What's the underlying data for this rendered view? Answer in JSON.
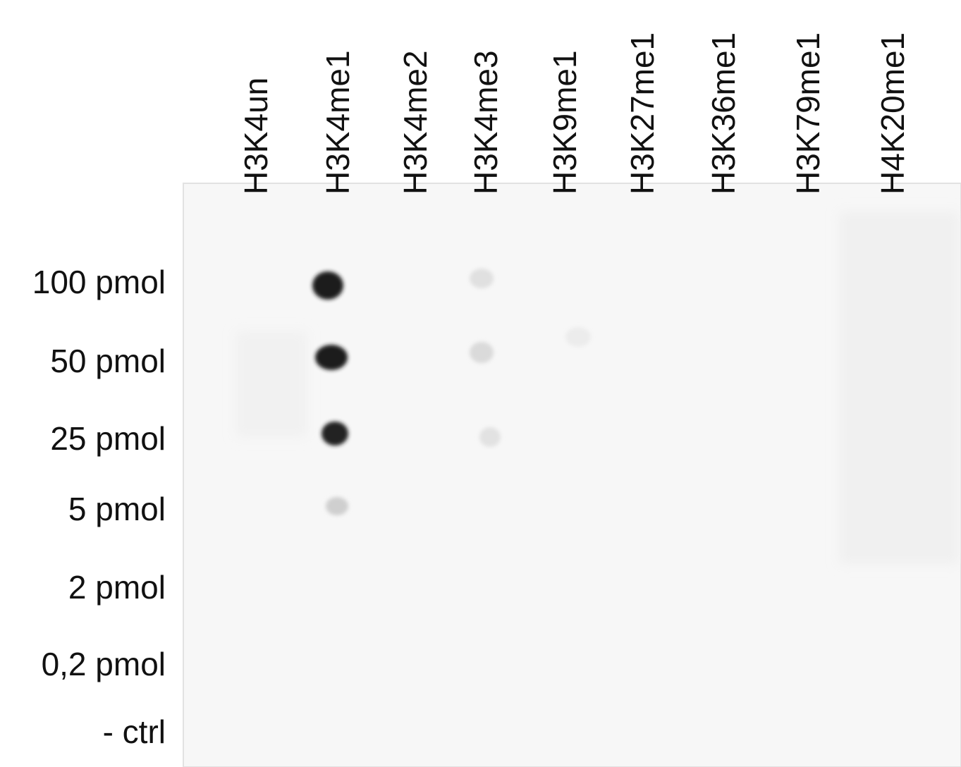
{
  "columns": [
    "H3K4un",
    "H3K4me1",
    "H3K4me2",
    "H3K4me3",
    "H3K9me1",
    "H3K27me1",
    "H3K36me1",
    "H3K79me1",
    "H4K20me1"
  ],
  "rows": [
    "100 pmol",
    "50 pmol",
    "25 pmol",
    "5 pmol",
    "2 pmol",
    "0,2 pmol",
    "- ctrl"
  ]
}
